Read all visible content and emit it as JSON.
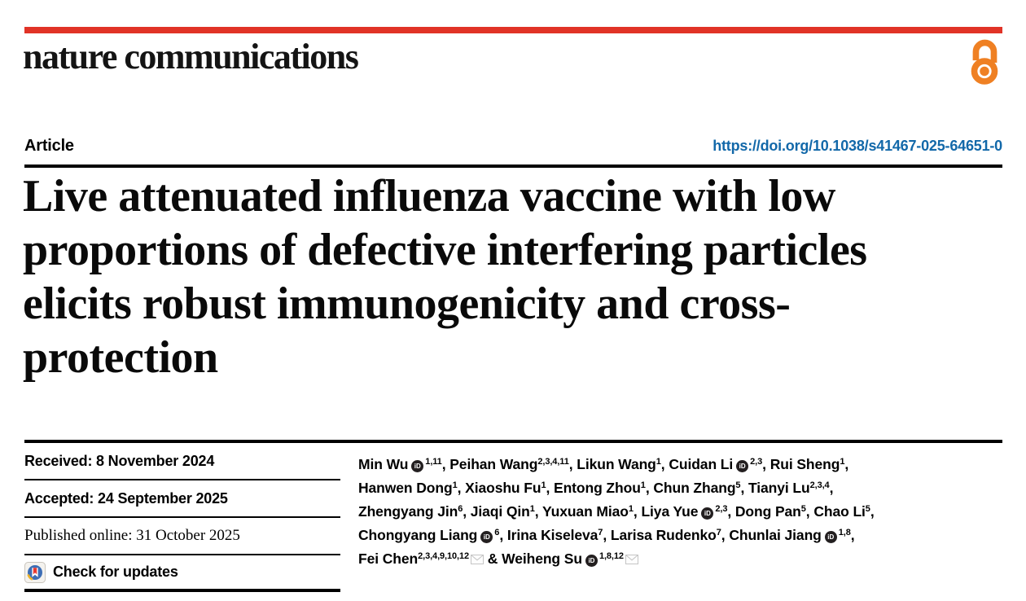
{
  "header": {
    "journal": "nature communications"
  },
  "article": {
    "type_label": "Article",
    "doi": "https://doi.org/10.1038/s41467-025-64651-0",
    "title_lines": [
      "Live attenuated influenza vaccine with low",
      "proportions of defective interfering particles",
      "elicits robust immunogenicity and cross-",
      "protection"
    ]
  },
  "dates": {
    "received": "Received: 8 November 2024",
    "accepted": "Accepted: 24 September 2025",
    "published": "Published online: 31 October 2025"
  },
  "updates": {
    "label": "Check for updates"
  },
  "authors": {
    "orcid_badge_text": "iD",
    "list": [
      {
        "name": "Min Wu",
        "orcid": true,
        "sup": "1,11"
      },
      {
        "name": "Peihan Wang",
        "sup": "2,3,4,11"
      },
      {
        "name": "Likun Wang",
        "sup": "1"
      },
      {
        "name": "Cuidan Li",
        "orcid": true,
        "sup": "2,3"
      },
      {
        "name": "Rui Sheng",
        "sup": "1",
        "break_after": true
      },
      {
        "name": "Hanwen Dong",
        "sup": "1"
      },
      {
        "name": "Xiaoshu Fu",
        "sup": "1"
      },
      {
        "name": "Entong Zhou",
        "sup": "1"
      },
      {
        "name": "Chun Zhang",
        "sup": "5"
      },
      {
        "name": "Tianyi Lu",
        "sup": "2,3,4",
        "break_after": true
      },
      {
        "name": "Zhengyang Jin",
        "sup": "6"
      },
      {
        "name": "Jiaqi Qin",
        "sup": "1"
      },
      {
        "name": "Yuxuan Miao",
        "sup": "1"
      },
      {
        "name": "Liya Yue",
        "orcid": true,
        "sup": "2,3"
      },
      {
        "name": "Dong Pan",
        "sup": "5"
      },
      {
        "name": "Chao Li",
        "sup": "5",
        "break_after": true
      },
      {
        "name": "Chongyang Liang",
        "orcid": true,
        "sup": "6"
      },
      {
        "name": "Irina Kiseleva",
        "sup": "7"
      },
      {
        "name": "Larisa Rudenko",
        "sup": "7"
      },
      {
        "name": "Chunlai Jiang",
        "orcid": true,
        "sup": "1,8",
        "break_after": true
      },
      {
        "name": "Fei Chen",
        "sup": "2,3,4,9,10,12",
        "email": true
      },
      {
        "name": "Weiheng Su",
        "orcid": true,
        "sup": "1,8,12",
        "email": true
      }
    ],
    "separator": ", ",
    "last_separator": " & "
  },
  "icons": {
    "open_access": "open-lock-icon",
    "orcid": "orcid-id-icon",
    "email": "envelope-icon",
    "crossmark": "crossmark-bookmark-icon"
  },
  "colors": {
    "brand_red": "#e13327",
    "link_blue": "#1268a9",
    "open_access_orange": "#ef8023",
    "orcid_black": "#231f20",
    "crossmark_blue": "#3d6eb5",
    "crossmark_red": "#e8392f",
    "crossmark_yellow": "#f0b429",
    "envelope_gray": "#c4c4c4"
  }
}
